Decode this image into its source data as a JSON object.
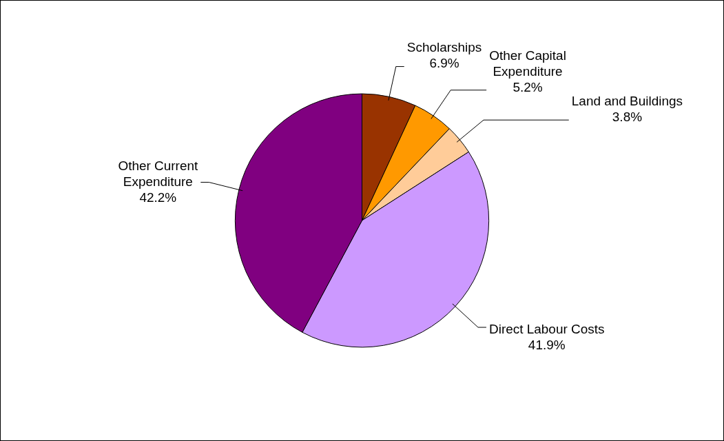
{
  "chart_data": {
    "type": "pie",
    "categories": [
      "Scholarships",
      "Other Capital Expenditure",
      "Land and Buildings",
      "Direct Labour Costs",
      "Other Current Expenditure"
    ],
    "values": [
      6.9,
      5.2,
      3.8,
      41.9,
      42.2
    ],
    "colors": [
      "#993300",
      "#ff9900",
      "#ffcc99",
      "#cc99ff",
      "#800080"
    ],
    "value_labels": [
      "6.9%",
      "5.2%",
      "3.8%",
      "41.9%",
      "42.2%"
    ],
    "legend": false
  }
}
